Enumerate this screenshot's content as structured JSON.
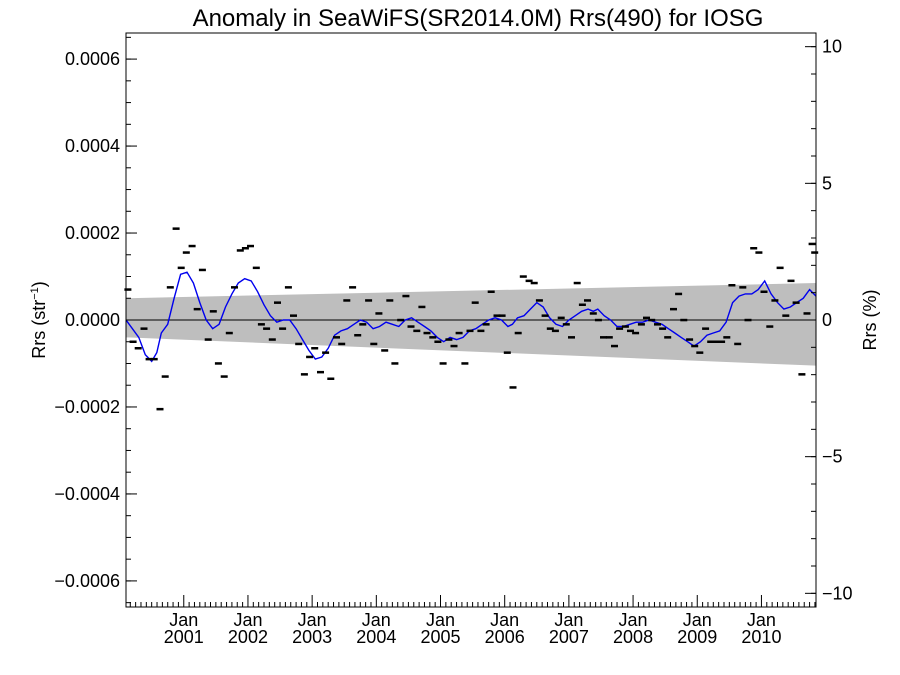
{
  "chart_data": {
    "type": "scatter",
    "title": "Anomaly in SeaWiFS(SR2014.0M) Rrs(490) for IOSG",
    "ylabel_left_main": "Rrs (str",
    "ylabel_left_sup": "−1",
    "ylabel_left_close": ")",
    "ylabel_right": "Rrs (%)",
    "xlim": [
      2000.1,
      2010.85
    ],
    "ylim_left": [
      -0.00066,
      0.00066
    ],
    "ylim_right": [
      -10.5,
      10.5
    ],
    "yticks_left": [
      {
        "value": 0.0006,
        "label": "0.0006"
      },
      {
        "value": 0.0004,
        "label": "0.0004"
      },
      {
        "value": 0.0002,
        "label": "0.0002"
      },
      {
        "value": 0.0,
        "label": "0.0000"
      },
      {
        "value": -0.0002,
        "label": "−0.0002"
      },
      {
        "value": -0.0004,
        "label": "−0.0004"
      },
      {
        "value": -0.0006,
        "label": "−0.0006"
      }
    ],
    "yticks_right": [
      {
        "value": 10,
        "label": "10"
      },
      {
        "value": 5,
        "label": "5"
      },
      {
        "value": 0,
        "label": "0"
      },
      {
        "value": -5,
        "label": "−5"
      },
      {
        "value": -10,
        "label": "−10"
      }
    ],
    "xticks": [
      {
        "value": 2001.0,
        "month": "Jan",
        "year": "2001"
      },
      {
        "value": 2002.0,
        "month": "Jan",
        "year": "2002"
      },
      {
        "value": 2003.0,
        "month": "Jan",
        "year": "2003"
      },
      {
        "value": 2004.0,
        "month": "Jan",
        "year": "2004"
      },
      {
        "value": 2005.0,
        "month": "Jan",
        "year": "2005"
      },
      {
        "value": 2006.0,
        "month": "Jan",
        "year": "2006"
      },
      {
        "value": 2007.0,
        "month": "Jan",
        "year": "2007"
      },
      {
        "value": 2008.0,
        "month": "Jan",
        "year": "2008"
      },
      {
        "value": 2009.0,
        "month": "Jan",
        "year": "2009"
      },
      {
        "value": 2010.0,
        "month": "Jan",
        "year": "2010"
      }
    ],
    "band": {
      "x": [
        2000.1,
        2010.85
      ],
      "upper": [
        5e-05,
        8.5e-05
      ],
      "lower": [
        -4e-05,
        -0.000105
      ],
      "color": "#bebebe"
    },
    "zero_line": 0,
    "points_color": "#000000",
    "line_color": "#0000ee",
    "points": [
      {
        "x": 2000.13,
        "y": 7e-05
      },
      {
        "x": 2000.21,
        "y": -5e-05
      },
      {
        "x": 2000.29,
        "y": -6.5e-05
      },
      {
        "x": 2000.38,
        "y": -2e-05
      },
      {
        "x": 2000.46,
        "y": -9e-05
      },
      {
        "x": 2000.54,
        "y": -9e-05
      },
      {
        "x": 2000.63,
        "y": -0.000205
      },
      {
        "x": 2000.71,
        "y": -0.00013
      },
      {
        "x": 2000.79,
        "y": 7.5e-05
      },
      {
        "x": 2000.88,
        "y": 0.00021
      },
      {
        "x": 2000.96,
        "y": 0.00012
      },
      {
        "x": 2001.04,
        "y": 0.000155
      },
      {
        "x": 2001.13,
        "y": 0.00017
      },
      {
        "x": 2001.21,
        "y": 2.5e-05
      },
      {
        "x": 2001.29,
        "y": 0.000115
      },
      {
        "x": 2001.38,
        "y": -4.5e-05
      },
      {
        "x": 2001.46,
        "y": 2e-05
      },
      {
        "x": 2001.54,
        "y": -0.0001
      },
      {
        "x": 2001.63,
        "y": -0.00013
      },
      {
        "x": 2001.71,
        "y": -3e-05
      },
      {
        "x": 2001.79,
        "y": 7.5e-05
      },
      {
        "x": 2001.88,
        "y": 0.00016
      },
      {
        "x": 2001.96,
        "y": 0.000165
      },
      {
        "x": 2002.04,
        "y": 0.00017
      },
      {
        "x": 2002.13,
        "y": 0.00012
      },
      {
        "x": 2002.21,
        "y": -1e-05
      },
      {
        "x": 2002.29,
        "y": -2e-05
      },
      {
        "x": 2002.38,
        "y": -4.5e-05
      },
      {
        "x": 2002.46,
        "y": 4e-05
      },
      {
        "x": 2002.54,
        "y": -2e-05
      },
      {
        "x": 2002.63,
        "y": 7.5e-05
      },
      {
        "x": 2002.71,
        "y": 1e-05
      },
      {
        "x": 2002.79,
        "y": -5.5e-05
      },
      {
        "x": 2002.88,
        "y": -0.000125
      },
      {
        "x": 2002.96,
        "y": -8.5e-05
      },
      {
        "x": 2003.04,
        "y": -6.5e-05
      },
      {
        "x": 2003.13,
        "y": -0.00012
      },
      {
        "x": 2003.21,
        "y": -7.5e-05
      },
      {
        "x": 2003.29,
        "y": -0.000135
      },
      {
        "x": 2003.38,
        "y": -4e-05
      },
      {
        "x": 2003.46,
        "y": -5.5e-05
      },
      {
        "x": 2003.54,
        "y": 4.5e-05
      },
      {
        "x": 2003.63,
        "y": 7.5e-05
      },
      {
        "x": 2003.71,
        "y": -3.5e-05
      },
      {
        "x": 2003.79,
        "y": -1e-05
      },
      {
        "x": 2003.88,
        "y": 4.5e-05
      },
      {
        "x": 2003.96,
        "y": -5.5e-05
      },
      {
        "x": 2004.04,
        "y": 1.5e-05
      },
      {
        "x": 2004.13,
        "y": -7e-05
      },
      {
        "x": 2004.21,
        "y": 4.5e-05
      },
      {
        "x": 2004.29,
        "y": -0.0001
      },
      {
        "x": 2004.38,
        "y": 0.0
      },
      {
        "x": 2004.46,
        "y": 5.5e-05
      },
      {
        "x": 2004.54,
        "y": -1.5e-05
      },
      {
        "x": 2004.63,
        "y": -2.5e-05
      },
      {
        "x": 2004.71,
        "y": 3e-05
      },
      {
        "x": 2004.79,
        "y": -3e-05
      },
      {
        "x": 2004.88,
        "y": -4e-05
      },
      {
        "x": 2004.96,
        "y": -5e-05
      },
      {
        "x": 2005.04,
        "y": -0.0001
      },
      {
        "x": 2005.13,
        "y": -4.5e-05
      },
      {
        "x": 2005.21,
        "y": -6e-05
      },
      {
        "x": 2005.29,
        "y": -3e-05
      },
      {
        "x": 2005.38,
        "y": -0.0001
      },
      {
        "x": 2005.46,
        "y": -2.5e-05
      },
      {
        "x": 2005.54,
        "y": 4e-05
      },
      {
        "x": 2005.63,
        "y": -2.5e-05
      },
      {
        "x": 2005.71,
        "y": -1e-05
      },
      {
        "x": 2005.79,
        "y": 6.5e-05
      },
      {
        "x": 2005.88,
        "y": 1e-05
      },
      {
        "x": 2005.96,
        "y": 1e-05
      },
      {
        "x": 2006.04,
        "y": -7.5e-05
      },
      {
        "x": 2006.13,
        "y": -0.000155
      },
      {
        "x": 2006.21,
        "y": -3e-05
      },
      {
        "x": 2006.29,
        "y": 0.0001
      },
      {
        "x": 2006.38,
        "y": 9e-05
      },
      {
        "x": 2006.46,
        "y": 8.5e-05
      },
      {
        "x": 2006.54,
        "y": 4.5e-05
      },
      {
        "x": 2006.63,
        "y": 1e-05
      },
      {
        "x": 2006.71,
        "y": -2e-05
      },
      {
        "x": 2006.79,
        "y": -2.5e-05
      },
      {
        "x": 2006.88,
        "y": 5e-06
      },
      {
        "x": 2006.96,
        "y": -1e-05
      },
      {
        "x": 2007.04,
        "y": -4e-05
      },
      {
        "x": 2007.13,
        "y": 8.5e-05
      },
      {
        "x": 2007.21,
        "y": 3.5e-05
      },
      {
        "x": 2007.29,
        "y": 4.5e-05
      },
      {
        "x": 2007.38,
        "y": 1.5e-05
      },
      {
        "x": 2007.46,
        "y": 0.0
      },
      {
        "x": 2007.54,
        "y": -4e-05
      },
      {
        "x": 2007.63,
        "y": -4e-05
      },
      {
        "x": 2007.71,
        "y": -6e-05
      },
      {
        "x": 2007.79,
        "y": -2e-05
      },
      {
        "x": 2007.88,
        "y": -1.5e-05
      },
      {
        "x": 2007.96,
        "y": -2.5e-05
      },
      {
        "x": 2008.04,
        "y": -3e-05
      },
      {
        "x": 2008.13,
        "y": -1e-05
      },
      {
        "x": 2008.21,
        "y": 5e-06
      },
      {
        "x": 2008.29,
        "y": 0.0
      },
      {
        "x": 2008.38,
        "y": -1e-05
      },
      {
        "x": 2008.46,
        "y": -2e-05
      },
      {
        "x": 2008.54,
        "y": -4e-05
      },
      {
        "x": 2008.63,
        "y": 2.5e-05
      },
      {
        "x": 2008.71,
        "y": 6e-05
      },
      {
        "x": 2008.79,
        "y": 0.0
      },
      {
        "x": 2008.88,
        "y": -4.5e-05
      },
      {
        "x": 2008.96,
        "y": -6e-05
      },
      {
        "x": 2009.04,
        "y": -7.5e-05
      },
      {
        "x": 2009.13,
        "y": -2e-05
      },
      {
        "x": 2009.21,
        "y": -5e-05
      },
      {
        "x": 2009.29,
        "y": -5e-05
      },
      {
        "x": 2009.38,
        "y": -5e-05
      },
      {
        "x": 2009.46,
        "y": -4e-05
      },
      {
        "x": 2009.54,
        "y": 8e-05
      },
      {
        "x": 2009.63,
        "y": -5.5e-05
      },
      {
        "x": 2009.71,
        "y": 7.5e-05
      },
      {
        "x": 2009.79,
        "y": 0.0
      },
      {
        "x": 2009.88,
        "y": 0.000165
      },
      {
        "x": 2009.96,
        "y": 0.000155
      },
      {
        "x": 2010.04,
        "y": 6.5e-05
      },
      {
        "x": 2010.13,
        "y": -1.5e-05
      },
      {
        "x": 2010.21,
        "y": 4.5e-05
      },
      {
        "x": 2010.29,
        "y": 0.00012
      },
      {
        "x": 2010.38,
        "y": 1e-05
      },
      {
        "x": 2010.46,
        "y": 9e-05
      },
      {
        "x": 2010.54,
        "y": 4e-05
      },
      {
        "x": 2010.63,
        "y": -0.000125
      },
      {
        "x": 2010.71,
        "y": 1.5e-05
      },
      {
        "x": 2010.79,
        "y": 0.000175
      },
      {
        "x": 2010.83,
        "y": 0.000155
      }
    ],
    "line": [
      {
        "x": 2000.1,
        "y": 0.0
      },
      {
        "x": 2000.2,
        "y": -2e-05
      },
      {
        "x": 2000.3,
        "y": -4e-05
      },
      {
        "x": 2000.4,
        "y": -8e-05
      },
      {
        "x": 2000.5,
        "y": -9.5e-05
      },
      {
        "x": 2000.58,
        "y": -7.5e-05
      },
      {
        "x": 2000.65,
        "y": -3e-05
      },
      {
        "x": 2000.75,
        "y": -1e-05
      },
      {
        "x": 2000.85,
        "y": 5e-05
      },
      {
        "x": 2000.95,
        "y": 0.000105
      },
      {
        "x": 2001.05,
        "y": 0.00011
      },
      {
        "x": 2001.15,
        "y": 8.5e-05
      },
      {
        "x": 2001.25,
        "y": 4e-05
      },
      {
        "x": 2001.35,
        "y": 0.0
      },
      {
        "x": 2001.45,
        "y": -2e-05
      },
      {
        "x": 2001.55,
        "y": -1e-05
      },
      {
        "x": 2001.65,
        "y": 3e-05
      },
      {
        "x": 2001.75,
        "y": 6e-05
      },
      {
        "x": 2001.85,
        "y": 8.5e-05
      },
      {
        "x": 2001.95,
        "y": 9.5e-05
      },
      {
        "x": 2002.05,
        "y": 9e-05
      },
      {
        "x": 2002.15,
        "y": 6.5e-05
      },
      {
        "x": 2002.25,
        "y": 3.5e-05
      },
      {
        "x": 2002.35,
        "y": 1e-05
      },
      {
        "x": 2002.45,
        "y": -5e-06
      },
      {
        "x": 2002.55,
        "y": 0.0
      },
      {
        "x": 2002.65,
        "y": 0.0
      },
      {
        "x": 2002.75,
        "y": -2e-05
      },
      {
        "x": 2002.85,
        "y": -4.5e-05
      },
      {
        "x": 2002.95,
        "y": -7e-05
      },
      {
        "x": 2003.05,
        "y": -9e-05
      },
      {
        "x": 2003.15,
        "y": -8.5e-05
      },
      {
        "x": 2003.25,
        "y": -6.5e-05
      },
      {
        "x": 2003.35,
        "y": -3.5e-05
      },
      {
        "x": 2003.45,
        "y": -2.5e-05
      },
      {
        "x": 2003.55,
        "y": -2e-05
      },
      {
        "x": 2003.65,
        "y": -1e-05
      },
      {
        "x": 2003.75,
        "y": 0.0
      },
      {
        "x": 2003.85,
        "y": -5e-06
      },
      {
        "x": 2003.95,
        "y": -2e-05
      },
      {
        "x": 2004.05,
        "y": -1.5e-05
      },
      {
        "x": 2004.15,
        "y": -5e-06
      },
      {
        "x": 2004.25,
        "y": -1e-05
      },
      {
        "x": 2004.35,
        "y": -1.5e-05
      },
      {
        "x": 2004.45,
        "y": 0.0
      },
      {
        "x": 2004.55,
        "y": 5e-06
      },
      {
        "x": 2004.65,
        "y": -5e-06
      },
      {
        "x": 2004.75,
        "y": -1.5e-05
      },
      {
        "x": 2004.85,
        "y": -2.5e-05
      },
      {
        "x": 2004.95,
        "y": -4e-05
      },
      {
        "x": 2005.05,
        "y": -5e-05
      },
      {
        "x": 2005.15,
        "y": -4e-05
      },
      {
        "x": 2005.25,
        "y": -4.5e-05
      },
      {
        "x": 2005.35,
        "y": -4e-05
      },
      {
        "x": 2005.45,
        "y": -2.5e-05
      },
      {
        "x": 2005.55,
        "y": -2e-05
      },
      {
        "x": 2005.65,
        "y": -1e-05
      },
      {
        "x": 2005.75,
        "y": 0.0
      },
      {
        "x": 2005.85,
        "y": 5e-06
      },
      {
        "x": 2005.95,
        "y": 0.0
      },
      {
        "x": 2006.05,
        "y": -1.5e-05
      },
      {
        "x": 2006.12,
        "y": -1e-05
      },
      {
        "x": 2006.2,
        "y": 5e-06
      },
      {
        "x": 2006.3,
        "y": 1e-05
      },
      {
        "x": 2006.4,
        "y": 2.5e-05
      },
      {
        "x": 2006.5,
        "y": 4e-05
      },
      {
        "x": 2006.6,
        "y": 3e-05
      },
      {
        "x": 2006.7,
        "y": 5e-06
      },
      {
        "x": 2006.8,
        "y": -1e-05
      },
      {
        "x": 2006.9,
        "y": -1.5e-05
      },
      {
        "x": 2007.0,
        "y": 0.0
      },
      {
        "x": 2007.1,
        "y": 1e-05
      },
      {
        "x": 2007.2,
        "y": 2e-05
      },
      {
        "x": 2007.3,
        "y": 2.5e-05
      },
      {
        "x": 2007.38,
        "y": 2e-05
      },
      {
        "x": 2007.45,
        "y": 2.5e-05
      },
      {
        "x": 2007.55,
        "y": 1e-05
      },
      {
        "x": 2007.65,
        "y": 0.0
      },
      {
        "x": 2007.75,
        "y": -1.5e-05
      },
      {
        "x": 2007.85,
        "y": -1.5e-05
      },
      {
        "x": 2007.95,
        "y": -1e-05
      },
      {
        "x": 2008.05,
        "y": -5e-06
      },
      {
        "x": 2008.15,
        "y": -5e-06
      },
      {
        "x": 2008.25,
        "y": 0.0
      },
      {
        "x": 2008.35,
        "y": -5e-06
      },
      {
        "x": 2008.45,
        "y": -1e-05
      },
      {
        "x": 2008.55,
        "y": -2e-05
      },
      {
        "x": 2008.65,
        "y": -3e-05
      },
      {
        "x": 2008.75,
        "y": -4e-05
      },
      {
        "x": 2008.85,
        "y": -5e-05
      },
      {
        "x": 2008.95,
        "y": -6e-05
      },
      {
        "x": 2009.05,
        "y": -5e-05
      },
      {
        "x": 2009.15,
        "y": -3.5e-05
      },
      {
        "x": 2009.25,
        "y": -3e-05
      },
      {
        "x": 2009.35,
        "y": -2.5e-05
      },
      {
        "x": 2009.45,
        "y": -5e-06
      },
      {
        "x": 2009.55,
        "y": 4e-05
      },
      {
        "x": 2009.65,
        "y": 5.5e-05
      },
      {
        "x": 2009.75,
        "y": 6e-05
      },
      {
        "x": 2009.85,
        "y": 6e-05
      },
      {
        "x": 2009.95,
        "y": 7e-05
      },
      {
        "x": 2010.05,
        "y": 9e-05
      },
      {
        "x": 2010.15,
        "y": 6e-05
      },
      {
        "x": 2010.25,
        "y": 4e-05
      },
      {
        "x": 2010.35,
        "y": 2.5e-05
      },
      {
        "x": 2010.45,
        "y": 3e-05
      },
      {
        "x": 2010.55,
        "y": 4e-05
      },
      {
        "x": 2010.65,
        "y": 5e-05
      },
      {
        "x": 2010.75,
        "y": 7e-05
      },
      {
        "x": 2010.85,
        "y": 5.5e-05
      }
    ]
  }
}
